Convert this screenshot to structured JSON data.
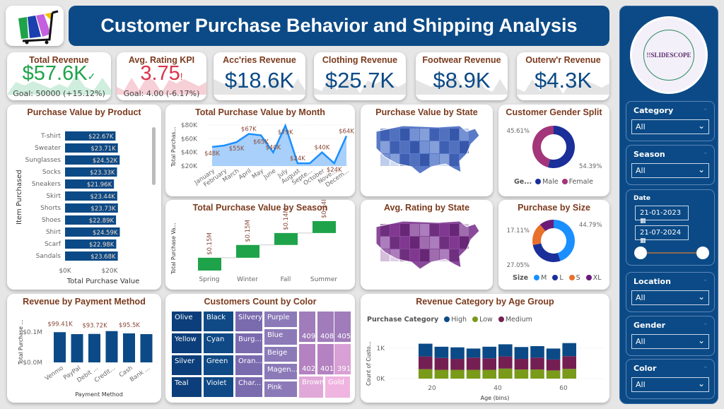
{
  "header": {
    "title": "Customer Purchase Behavior and Shipping Analysis"
  },
  "colors": {
    "primary": "#0b4a86",
    "title_text": "#7b3b1e",
    "good": "#1ea34a",
    "bad": "#d9344a",
    "male": "#1a2f9a",
    "female": "#a3357a"
  },
  "kpis": [
    {
      "title": "Total Revenue",
      "value": "$57.6K",
      "goal": "Goal: 50000 (+15.12%)",
      "status": "good",
      "icon": "check-icon"
    },
    {
      "title": "Avg. Rating KPI",
      "value": "3.75",
      "goal": "Goal: 4.00 (-6.17%)",
      "status": "bad",
      "icon": "exclamation-icon"
    },
    {
      "title": "Acc'ries Revenue",
      "value": "$18.6K"
    },
    {
      "title": "Clothing Revenue",
      "value": "$25.7K"
    },
    {
      "title": "Footwear Revenue",
      "value": "$8.9K"
    },
    {
      "title": "Outerw'r Revenue",
      "value": "$4.3K"
    }
  ],
  "product_chart": {
    "title": "Purchase Value by Product",
    "ylabel": "Item Purchased",
    "xlabel": "Total Purchase Value",
    "xticks": [
      "$0K",
      "$20K"
    ],
    "chart_data": {
      "type": "bar",
      "orientation": "horizontal",
      "categories": [
        "T-shirt",
        "Sweater",
        "Sunglasses",
        "Socks",
        "Sneakers",
        "Skirt",
        "Shorts",
        "Shoes",
        "Shirt",
        "Scarf",
        "Sandals"
      ],
      "values": [
        22.67,
        23.71,
        24.52,
        23.33,
        21.96,
        23.44,
        23.73,
        22.89,
        24.59,
        22.98,
        23.68
      ],
      "labels": [
        "$22.67K",
        "$23.71K",
        "$24.52K",
        "$23.33K",
        "$21.96K",
        "$23.44K",
        "$23.73K",
        "$22.89K",
        "$24.59K",
        "$22.98K",
        "$23.68K"
      ],
      "xlim": [
        0,
        30
      ]
    }
  },
  "month_chart": {
    "title": "Total Purchase Value by Month",
    "ylabel": "Total Purchas...",
    "yticks": [
      "$80K",
      "$60K",
      "$40K",
      "$20K"
    ],
    "chart_data": {
      "type": "area",
      "categories": [
        "January",
        "February",
        "March",
        "April",
        "May",
        "June",
        "July",
        "August",
        "Septe...",
        "October",
        "Nove...",
        "Decem..."
      ],
      "values": [
        48,
        50,
        55,
        67,
        65,
        40,
        79,
        24,
        24,
        40,
        24,
        64
      ],
      "labels": [
        "$48K",
        "",
        "$55K",
        "$67K",
        "$65K",
        "$40K",
        "$79K",
        "$24K",
        "",
        "$40K",
        "$24K",
        "$64K"
      ],
      "ylim": [
        20,
        80
      ]
    }
  },
  "state_map": {
    "title": "Purchase Value by State"
  },
  "rating_map": {
    "title": "Avg. Rating by State"
  },
  "gender_chart": {
    "title": "Customer Gender Split",
    "legend_title": "Ge...",
    "chart_data": {
      "type": "pie",
      "donut": true,
      "categories": [
        "Male",
        "Female"
      ],
      "values": [
        54.39,
        45.61
      ],
      "labels": [
        "54.39%",
        "45.61%"
      ],
      "colors": [
        "#1a2f9a",
        "#a3357a"
      ]
    }
  },
  "season_chart": {
    "title": "Total Purchase Value by Season",
    "ylabel": "Total Purchase Va...",
    "chart_data": {
      "type": "waterfall",
      "categories": [
        "Spring",
        "Winter",
        "Fall",
        "Summer"
      ],
      "values": [
        0.15,
        0.15,
        0.14,
        0.14
      ],
      "labels": [
        "$0.15M",
        "$0.15M",
        "$0.14M",
        "$0.14M"
      ]
    }
  },
  "size_chart": {
    "title": "Purchase by Size",
    "legend_title": "Size",
    "chart_data": {
      "type": "pie",
      "donut": true,
      "categories": [
        "M",
        "L",
        "S",
        "XL"
      ],
      "values": [
        44.79,
        27.05,
        17.11,
        11.05
      ],
      "labels": [
        "44.79%",
        "27.05%",
        "17.11%",
        ""
      ],
      "colors": [
        "#1a8fff",
        "#1a2f9a",
        "#e8702a",
        "#6b1a7a"
      ]
    }
  },
  "payment_chart": {
    "title": "Revenue by Payment Method",
    "ylabel": "Total Purchase ...",
    "xlabel": "Payment Method",
    "yticks": [
      "$0.1M",
      "$0.0M"
    ],
    "chart_data": {
      "type": "bar",
      "categories": [
        "Venmo",
        "PayPal",
        "Debit ...",
        "Credit...",
        "Cash",
        "Bank ..."
      ],
      "values": [
        99.41,
        93.0,
        93.72,
        103.0,
        95.5,
        93.0
      ],
      "labels": [
        "$99.41K",
        "",
        "$93.72K",
        "",
        "$95.5K",
        ""
      ],
      "ylim": [
        0,
        130
      ]
    }
  },
  "color_chart": {
    "title": "Customers Count by Color",
    "chart_data": {
      "type": "treemap",
      "cells": [
        "Olive",
        "Yellow",
        "Silver",
        "Teal",
        "Black",
        "Cyan",
        "Green",
        "Violet",
        "Silvery",
        "Burg...",
        "Oran...",
        "Char...",
        "Purple",
        "Blue",
        "Beige",
        "Magen...",
        "Pink",
        "409",
        "408",
        "405",
        "402",
        "401",
        "391",
        "Brown",
        "Gold"
      ]
    }
  },
  "age_chart": {
    "title": "Revenue Category by Age Group",
    "legend_title": "Purchase Category",
    "ylabel": "Count of Custo...",
    "xlabel": "Age (bins)",
    "yticks": [
      "1K",
      "0K"
    ],
    "xticks": [
      "20",
      "40",
      "60"
    ],
    "chart_data": {
      "type": "area",
      "stacked": true,
      "x": [
        18,
        23,
        28,
        33,
        38,
        43,
        48,
        53,
        58,
        63
      ],
      "series": [
        {
          "name": "Low",
          "color": "#7a9a1a",
          "values": [
            310,
            290,
            290,
            290,
            290,
            330,
            300,
            300,
            270,
            320
          ]
        },
        {
          "name": "Medium",
          "color": "#741f52",
          "values": [
            420,
            390,
            360,
            400,
            380,
            400,
            350,
            390,
            360,
            420
          ]
        },
        {
          "name": "High",
          "color": "#0b4a86",
          "values": [
            420,
            370,
            380,
            300,
            380,
            400,
            390,
            380,
            360,
            430
          ]
        }
      ],
      "ylim": [
        0,
        1500
      ]
    }
  },
  "sidebar": {
    "logo_text": "!!SLIDESCOPE",
    "slicers": [
      {
        "label": "Category",
        "value": "All"
      },
      {
        "label": "Season",
        "value": "All"
      },
      {
        "label": "Location",
        "value": "All"
      },
      {
        "label": "Gender",
        "value": "All"
      },
      {
        "label": "Color",
        "value": "All"
      }
    ],
    "date": {
      "label": "Date",
      "start": "21-01-2023",
      "end": "21-07-2024"
    }
  }
}
